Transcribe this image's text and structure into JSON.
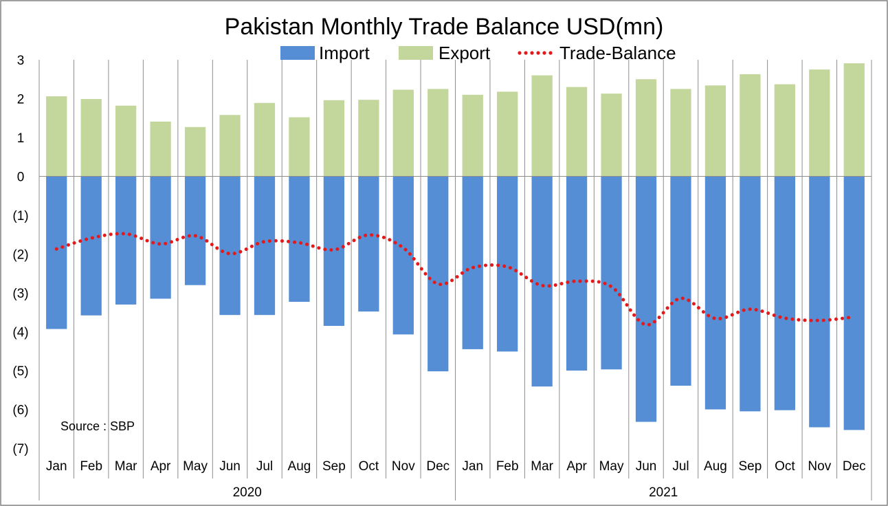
{
  "chart_data": {
    "type": "bar",
    "title": "Pakistan Monthly Trade Balance USD(mn)",
    "categories": [
      "Jan",
      "Feb",
      "Mar",
      "Apr",
      "May",
      "Jun",
      "Jul",
      "Aug",
      "Sep",
      "Oct",
      "Nov",
      "Dec",
      "Jan",
      "Feb",
      "Mar",
      "Apr",
      "May",
      "Jun",
      "Jul",
      "Aug",
      "Sep",
      "Oct",
      "Nov",
      "Dec"
    ],
    "groups": [
      {
        "label": "2020",
        "start": 0,
        "end": 11
      },
      {
        "label": "2021",
        "start": 12,
        "end": 23
      }
    ],
    "series": [
      {
        "name": "Import",
        "kind": "bar",
        "color": "#558ed5",
        "values": [
          -3.93,
          -3.58,
          -3.3,
          -3.15,
          -2.8,
          -3.57,
          -3.57,
          -3.23,
          -3.85,
          -3.48,
          -4.07,
          -5.02,
          -4.45,
          -4.51,
          -5.41,
          -5.0,
          -4.97,
          -6.32,
          -5.39,
          -6.0,
          -6.05,
          -6.02,
          -6.46,
          -6.53
        ]
      },
      {
        "name": "Export",
        "kind": "bar",
        "color": "#c3d69b",
        "values": [
          2.06,
          1.99,
          1.82,
          1.41,
          1.27,
          1.58,
          1.89,
          1.52,
          1.96,
          1.97,
          2.23,
          2.25,
          2.1,
          2.18,
          2.6,
          2.3,
          2.13,
          2.5,
          2.25,
          2.34,
          2.63,
          2.37,
          2.75,
          2.91
        ]
      },
      {
        "name": "Trade-Balance",
        "kind": "line",
        "style": "dotted",
        "color": "#e31a1c",
        "values": [
          -1.87,
          -1.59,
          -1.48,
          -1.74,
          -1.53,
          -1.99,
          -1.68,
          -1.71,
          -1.89,
          -1.51,
          -1.84,
          -2.77,
          -2.35,
          -2.33,
          -2.81,
          -2.7,
          -2.84,
          -3.82,
          -3.14,
          -3.66,
          -3.42,
          -3.65,
          -3.71,
          -3.62
        ]
      }
    ],
    "y_ticks": [
      "3",
      "2",
      "1",
      "0",
      "(1)",
      "(2)",
      "(3)",
      "(4)",
      "(5)",
      "(6)",
      "(7)"
    ],
    "ylim": [
      -7,
      3
    ],
    "grid": "vertical category separators",
    "legend": "top-center",
    "annotation": "Source : SBP"
  },
  "legend_items": [
    "Import",
    "Export",
    "Trade-Balance"
  ]
}
